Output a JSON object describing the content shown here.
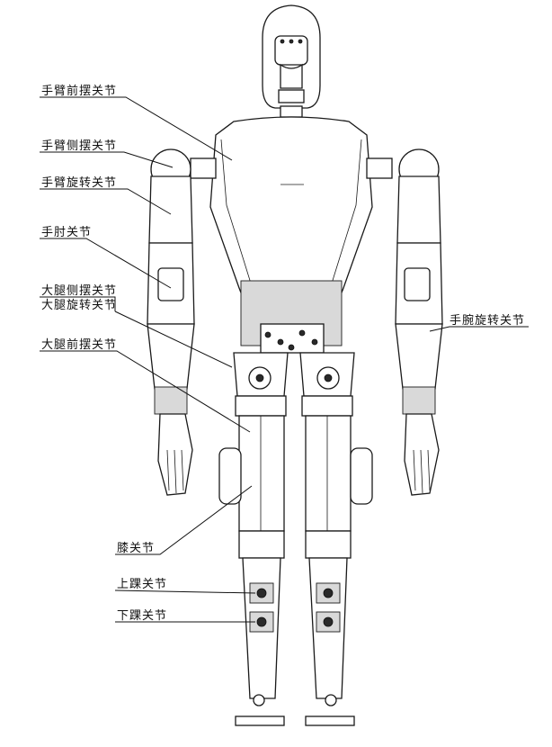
{
  "labels": {
    "arm_pitch": "手臂前摆关节",
    "arm_roll": "手臂侧摆关节",
    "arm_yaw": "手臂旋转关节",
    "elbow": "手肘关节",
    "hip_roll": "大腿侧摆关节",
    "hip_yaw": "大腿旋转关节",
    "hip_pitch": "大腿前摆关节",
    "knee": "膝关节",
    "ankle_upper": "上踝关节",
    "ankle_lower": "下踝关节",
    "wrist_yaw": "手腕旋转关节"
  }
}
